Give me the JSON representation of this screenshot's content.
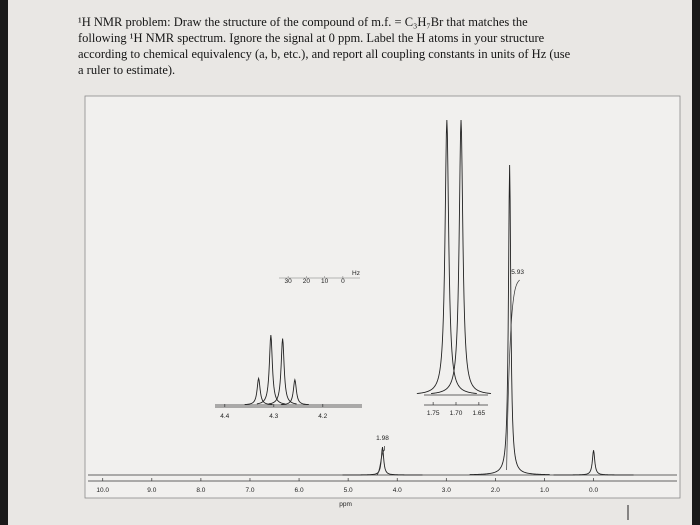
{
  "problem": {
    "lines": [
      "¹H NMR problem: Draw the structure of the compound of m.f. = C₃H₇Br that matches the",
      "following ¹H NMR spectrum. Ignore the signal at 0 ppm. Label the H atoms in your structure",
      "according to chemical equivalency (a, b, etc.), and report all coupling constants in units of Hz (use",
      "a ruler to estimate)."
    ]
  },
  "chart_data": [
    {
      "type": "spectrum",
      "xlabel": "ppm",
      "xlim": [
        10.3,
        -1.7
      ],
      "ylim": [
        0,
        100
      ],
      "xticks": [
        {
          "value": 10,
          "label": "10.0"
        },
        {
          "value": 9,
          "label": "9.0"
        },
        {
          "value": 8,
          "label": "8.0"
        },
        {
          "value": 7,
          "label": "7.0"
        },
        {
          "value": 6,
          "label": "6.0"
        },
        {
          "value": 5,
          "label": "5.0"
        },
        {
          "value": 4,
          "label": "4.0"
        },
        {
          "value": 3,
          "label": "3.0"
        },
        {
          "value": 2,
          "label": "2.0"
        },
        {
          "value": 1,
          "label": "1.0"
        },
        {
          "value": 0,
          "label": "0.0"
        }
      ],
      "peaks": {
        "x": [
          4.3,
          1.71,
          0.0
        ],
        "values": [
          9,
          100,
          8
        ]
      },
      "integrals": [
        1.98,
        5.93
      ]
    },
    {
      "type": "spectrum",
      "xlim": [
        4.42,
        4.12
      ],
      "ylim": [
        0,
        100
      ],
      "xticks": [
        4.4,
        4.3,
        4.2
      ],
      "peaks": {
        "x": [
          4.331,
          4.306,
          4.282,
          4.257
        ],
        "values": [
          38,
          100,
          95,
          36
        ]
      },
      "hz_scale": {
        "label": "Hz",
        "xlim": [
          35,
          -5
        ],
        "xticks": [
          30,
          20,
          10,
          0
        ]
      }
    },
    {
      "type": "spectrum",
      "xlim": [
        1.77,
        1.63
      ],
      "ylim": [
        0,
        100
      ],
      "xticks": [
        1.75,
        {
          "value": 1.7,
          "label": "1.70"
        },
        1.65
      ],
      "peaks": {
        "x": [
          1.72,
          1.689
        ],
        "values": [
          100,
          100
        ]
      }
    }
  ]
}
